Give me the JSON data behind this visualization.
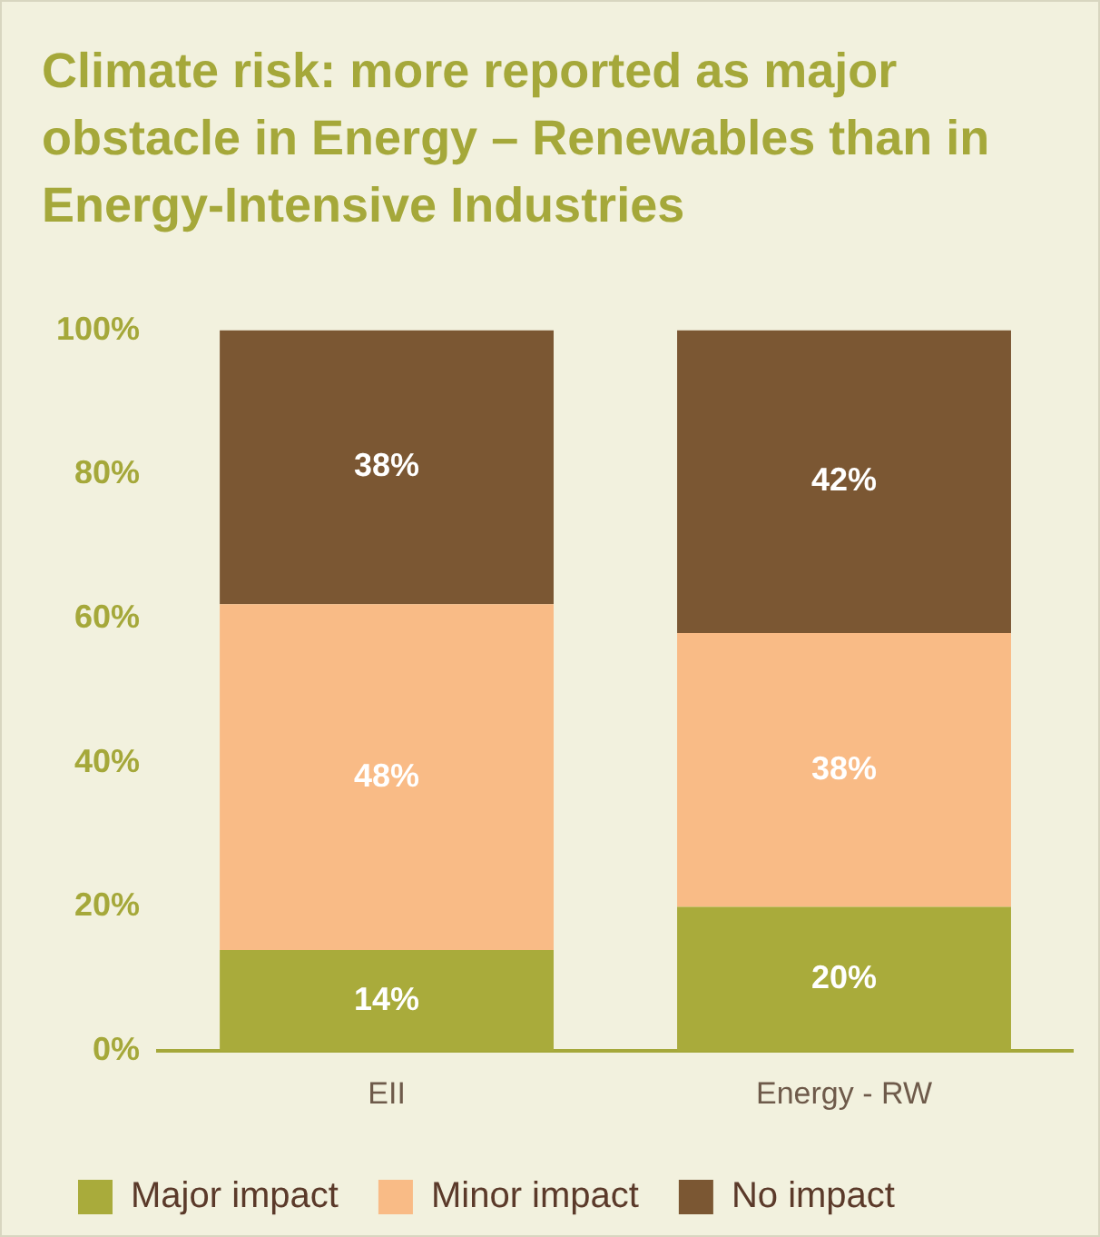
{
  "chart_data": {
    "type": "bar",
    "title": "Climate risk: more reported as major obstacle in Energy – Renewables than in Energy-Intensive Industries",
    "categories": [
      "EII",
      "Energy - RW"
    ],
    "stacked": true,
    "series": [
      {
        "name": "Major impact",
        "color": "#a9ab3b",
        "values": [
          14,
          20
        ],
        "value_labels": [
          "14%",
          "20%"
        ]
      },
      {
        "name": "Minor impact",
        "color": "#f9bb86",
        "values": [
          48,
          38
        ],
        "value_labels": [
          "48%",
          "38%"
        ]
      },
      {
        "name": "No impact",
        "color": "#7b5733",
        "values": [
          38,
          42
        ],
        "value_labels": [
          "38%",
          "42%"
        ]
      }
    ],
    "ylim": [
      0,
      100
    ],
    "yticks": [
      {
        "value": 0,
        "label": "0%"
      },
      {
        "value": 20,
        "label": "20%"
      },
      {
        "value": 40,
        "label": "40%"
      },
      {
        "value": 60,
        "label": "60%"
      },
      {
        "value": 80,
        "label": "80%"
      },
      {
        "value": 100,
        "label": "100%"
      }
    ],
    "grid": false,
    "legend": "bottom"
  }
}
